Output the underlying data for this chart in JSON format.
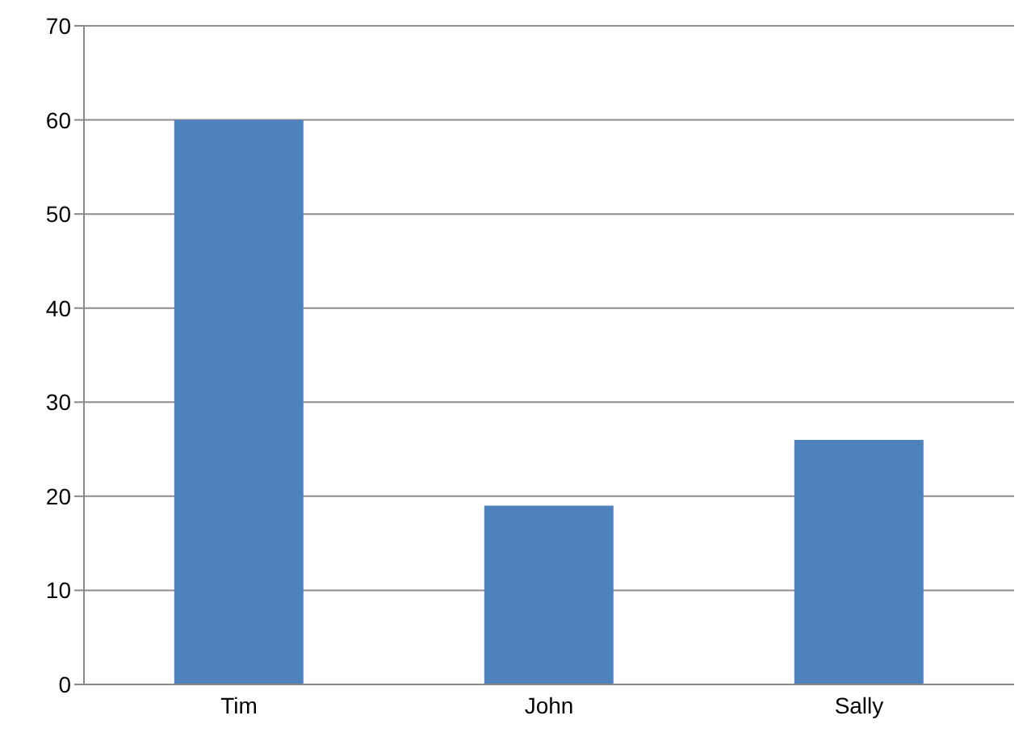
{
  "chart_data": {
    "type": "bar",
    "categories": [
      "Tim",
      "John",
      "Sally"
    ],
    "values": [
      60,
      19,
      26
    ],
    "color": "#4f81bd",
    "ylim": [
      0,
      70
    ],
    "yticks": [
      0,
      10,
      20,
      30,
      40,
      50,
      60,
      70
    ],
    "grid": "y"
  }
}
